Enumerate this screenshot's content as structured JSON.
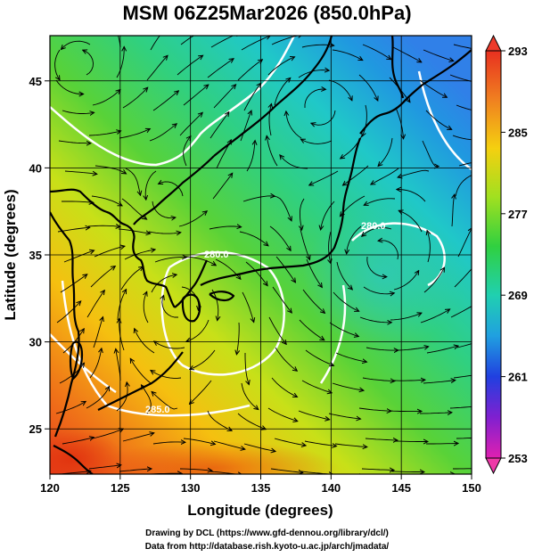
{
  "title": "MSM 06Z25Mar2026 (850.0hPa)",
  "axes": {
    "xlabel": "Longitude (degrees)",
    "ylabel": "Latitude  (degrees)",
    "x_ticks": [
      "120",
      "125",
      "130",
      "135",
      "140",
      "145",
      "150"
    ],
    "y_ticks": [
      "25",
      "30",
      "35",
      "40",
      "45"
    ],
    "x_range": [
      120,
      150
    ],
    "y_range": [
      22.4,
      47.6
    ]
  },
  "colorbar": {
    "ticks": [
      "293",
      "285",
      "277",
      "269",
      "261",
      "253"
    ],
    "range": [
      253,
      293
    ]
  },
  "contour_labels": [
    "280.0",
    "280.0",
    "285.0"
  ],
  "footer": {
    "line1": "Drawing by DCL (https://www.gfd-dennou.org/library/dcl/)",
    "line2": "Data from http://database.rish.kyoto-u.ac.jp/arch/jmadata/"
  },
  "colors": {
    "background": "#ffffff",
    "contour": "#ffffff",
    "streamline": "#000000",
    "coastline": "#000000"
  }
}
